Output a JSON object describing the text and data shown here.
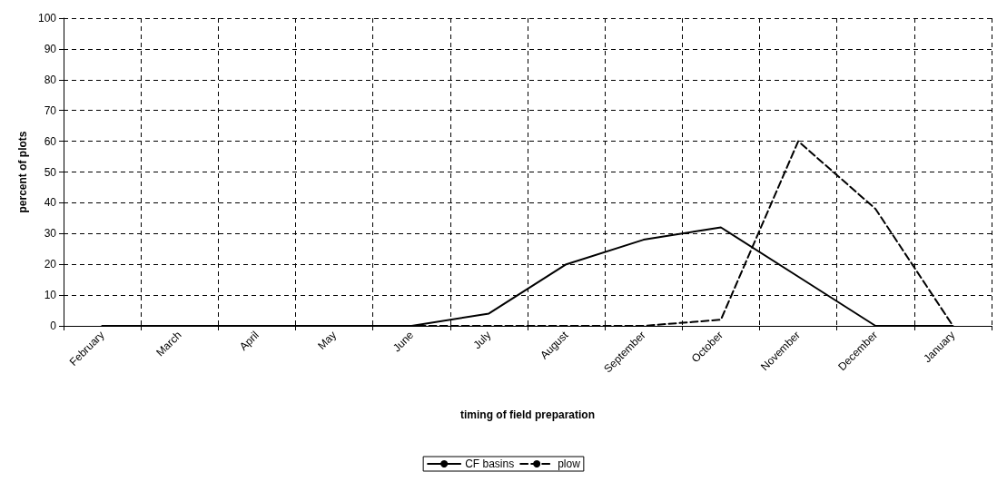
{
  "chart_data": {
    "type": "line",
    "xlabel": "timing of field preparation",
    "ylabel": "percent of plots",
    "categories": [
      "February",
      "March",
      "April",
      "May",
      "June",
      "July",
      "August",
      "September",
      "October",
      "November",
      "December",
      "January"
    ],
    "series": [
      {
        "name": "CF basins",
        "color": "#000000",
        "line_style": "solid",
        "values": [
          0,
          0,
          0,
          0,
          0,
          4,
          20,
          28,
          32,
          16,
          0,
          0
        ]
      },
      {
        "name": "plow",
        "color": "#000000",
        "line_style": "dashed",
        "values": [
          0,
          0,
          0,
          0,
          0,
          0,
          0,
          0,
          2,
          60,
          38,
          0
        ]
      }
    ],
    "ylim": [
      0,
      100
    ],
    "yticks": [
      0,
      10,
      20,
      30,
      40,
      50,
      60,
      70,
      80,
      90,
      100
    ],
    "grid": true,
    "legend": "bottom",
    "marker": "none"
  }
}
